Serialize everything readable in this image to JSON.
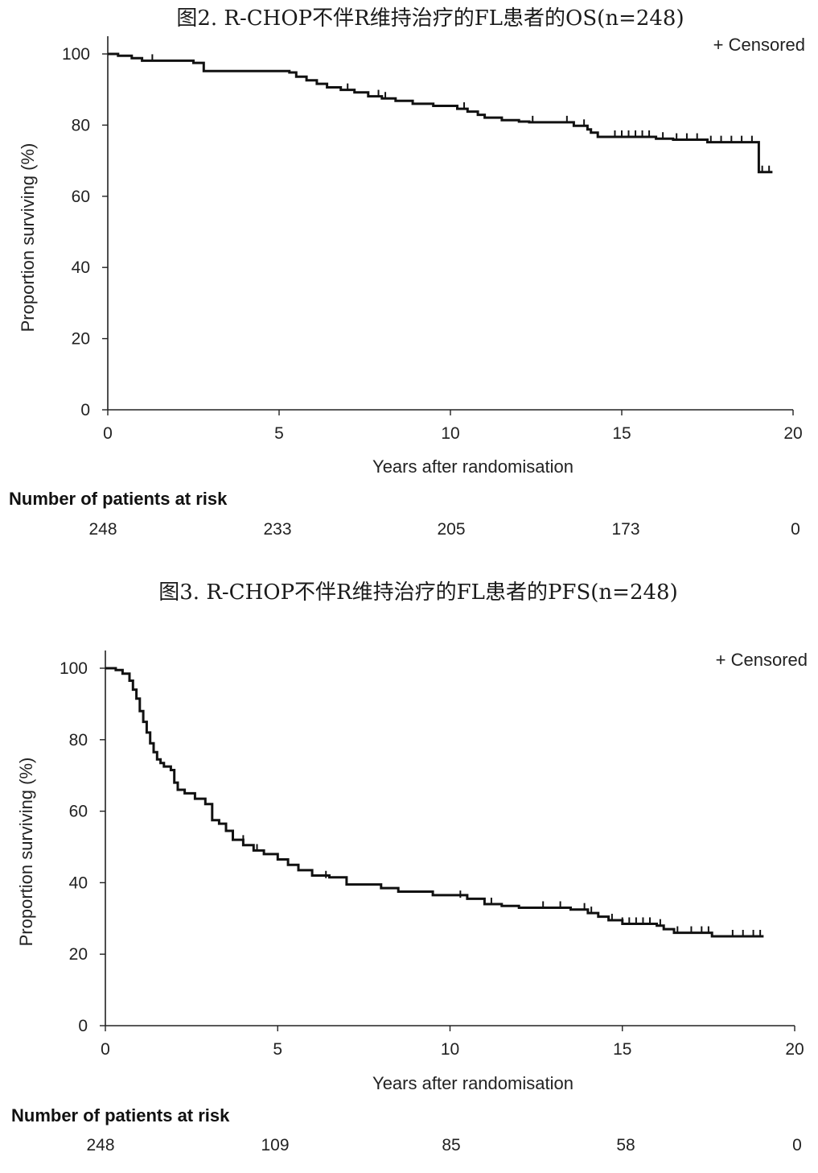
{
  "charts": [
    {
      "title": "图2. R-CHOP不伴R维持治疗的FL患者的OS(n=248)",
      "censored_legend": "+ Censored",
      "risk_heading": "Number of patients at risk",
      "risk_numbers": [
        "248",
        "233",
        "205",
        "173",
        "0"
      ]
    },
    {
      "title": "图3. R-CHOP不伴R维持治疗的FL患者的PFS(n=248)",
      "censored_legend": "+ Censored",
      "risk_heading": "Number of patients at risk",
      "risk_numbers": [
        "248",
        "109",
        "85",
        "58",
        "0"
      ]
    }
  ],
  "chart_data": [
    {
      "type": "line",
      "step": true,
      "title": "图2. R-CHOP不伴R维持治疗的FL患者的OS(n=248)",
      "xlabel": "Years after randomisation",
      "ylabel": "Proportion surviving (%)",
      "xlim": [
        0,
        20
      ],
      "ylim": [
        0,
        100
      ],
      "xticks": [
        0,
        5,
        10,
        15,
        20
      ],
      "yticks": [
        0,
        20,
        40,
        60,
        80,
        100
      ],
      "grid": false,
      "legend": "+ Censored",
      "legend_position": "top-right",
      "series": [
        {
          "x": [
            0,
            0.3,
            0.7,
            1.0,
            2.5,
            2.8,
            5.3,
            5.5,
            5.8,
            6.1,
            6.4,
            6.8,
            7.2,
            7.6,
            8.0,
            8.4,
            8.9,
            9.5,
            10.2,
            10.5,
            10.8,
            11.0,
            11.5,
            12.0,
            12.3,
            13.6,
            14.0,
            14.1,
            14.3,
            16.0,
            16.5,
            17.5,
            18.9,
            19.0,
            19.4
          ],
          "y": [
            100,
            99.5,
            98.8,
            98.1,
            97.5,
            95.2,
            94.8,
            93.6,
            92.6,
            91.6,
            90.6,
            89.9,
            89.2,
            88.1,
            87.5,
            86.8,
            86.0,
            85.4,
            84.6,
            83.8,
            82.9,
            82.1,
            81.4,
            81.0,
            80.8,
            79.8,
            78.8,
            77.9,
            76.7,
            76.2,
            75.9,
            75.2,
            75.2,
            66.8,
            66.8
          ]
        }
      ],
      "censored": [
        {
          "x": 1.3,
          "y": 98.1
        },
        {
          "x": 7.0,
          "y": 89.9
        },
        {
          "x": 7.9,
          "y": 88.1
        },
        {
          "x": 8.1,
          "y": 87.5
        },
        {
          "x": 10.4,
          "y": 84.6
        },
        {
          "x": 12.4,
          "y": 80.8
        },
        {
          "x": 13.4,
          "y": 80.8
        },
        {
          "x": 13.9,
          "y": 79.8
        },
        {
          "x": 14.8,
          "y": 76.7
        },
        {
          "x": 15.0,
          "y": 76.7
        },
        {
          "x": 15.2,
          "y": 76.7
        },
        {
          "x": 15.4,
          "y": 76.7
        },
        {
          "x": 15.6,
          "y": 76.7
        },
        {
          "x": 15.8,
          "y": 76.7
        },
        {
          "x": 16.2,
          "y": 76.2
        },
        {
          "x": 16.6,
          "y": 75.9
        },
        {
          "x": 16.9,
          "y": 75.9
        },
        {
          "x": 17.2,
          "y": 75.9
        },
        {
          "x": 17.6,
          "y": 75.2
        },
        {
          "x": 17.9,
          "y": 75.2
        },
        {
          "x": 18.2,
          "y": 75.2
        },
        {
          "x": 18.5,
          "y": 75.2
        },
        {
          "x": 18.8,
          "y": 75.2
        },
        {
          "x": 19.1,
          "y": 66.8
        },
        {
          "x": 19.3,
          "y": 66.8
        }
      ]
    },
    {
      "type": "line",
      "step": true,
      "title": "图3. R-CHOP不伴R维持治疗的FL患者的PFS(n=248)",
      "xlabel": "Years after randomisation",
      "ylabel": "Proportion surviving (%)",
      "xlim": [
        0,
        20
      ],
      "ylim": [
        0,
        100
      ],
      "xticks": [
        0,
        5,
        10,
        15,
        20
      ],
      "yticks": [
        0,
        20,
        40,
        60,
        80,
        100
      ],
      "grid": false,
      "legend": "+ Censored",
      "legend_position": "top-right",
      "series": [
        {
          "x": [
            0,
            0.3,
            0.5,
            0.7,
            0.8,
            0.9,
            1.0,
            1.1,
            1.2,
            1.3,
            1.4,
            1.5,
            1.6,
            1.7,
            1.9,
            2.0,
            2.1,
            2.3,
            2.6,
            2.9,
            3.1,
            3.3,
            3.5,
            3.7,
            4.0,
            4.3,
            4.6,
            5.0,
            5.3,
            5.6,
            6.0,
            6.5,
            7.0,
            8.0,
            8.5,
            9.5,
            10.5,
            11.0,
            11.5,
            12.0,
            13.5,
            14.0,
            14.3,
            14.6,
            15.0,
            16.0,
            16.2,
            16.5,
            17.6,
            18.0,
            19.1
          ],
          "y": [
            100,
            99.5,
            98.5,
            96.5,
            94.0,
            91.5,
            88.0,
            85.0,
            82.0,
            79.0,
            76.5,
            74.5,
            73.5,
            72.5,
            71.5,
            68.0,
            66.0,
            65.0,
            63.5,
            62.0,
            57.5,
            56.5,
            54.5,
            52.0,
            50.5,
            49.0,
            48.0,
            46.5,
            45.0,
            43.5,
            42.0,
            41.5,
            39.5,
            38.5,
            37.5,
            36.5,
            35.5,
            34.0,
            33.5,
            33.0,
            32.5,
            31.5,
            30.5,
            29.5,
            28.5,
            28.0,
            27.0,
            26.0,
            25.0,
            25.0,
            25.0
          ]
        }
      ],
      "censored": [
        {
          "x": 4.0,
          "y": 51.5
        },
        {
          "x": 4.4,
          "y": 49.0
        },
        {
          "x": 5.0,
          "y": 46.5
        },
        {
          "x": 6.4,
          "y": 41.5
        },
        {
          "x": 7.0,
          "y": 39.5
        },
        {
          "x": 10.3,
          "y": 36.0
        },
        {
          "x": 11.2,
          "y": 34.0
        },
        {
          "x": 12.7,
          "y": 33.0
        },
        {
          "x": 13.2,
          "y": 33.0
        },
        {
          "x": 13.9,
          "y": 32.5
        },
        {
          "x": 14.1,
          "y": 31.5
        },
        {
          "x": 14.7,
          "y": 29.5
        },
        {
          "x": 15.0,
          "y": 28.5
        },
        {
          "x": 15.2,
          "y": 28.5
        },
        {
          "x": 15.4,
          "y": 28.5
        },
        {
          "x": 15.6,
          "y": 28.5
        },
        {
          "x": 15.8,
          "y": 28.5
        },
        {
          "x": 16.1,
          "y": 28.0
        },
        {
          "x": 16.6,
          "y": 26.0
        },
        {
          "x": 17.0,
          "y": 26.0
        },
        {
          "x": 17.3,
          "y": 26.0
        },
        {
          "x": 17.5,
          "y": 26.0
        },
        {
          "x": 18.2,
          "y": 25.0
        },
        {
          "x": 18.5,
          "y": 25.0
        },
        {
          "x": 18.8,
          "y": 25.0
        },
        {
          "x": 19.0,
          "y": 25.0
        }
      ]
    }
  ]
}
